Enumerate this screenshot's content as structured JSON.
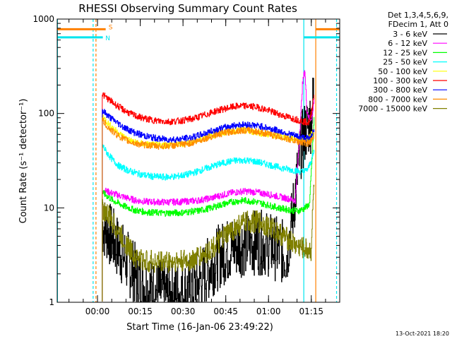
{
  "chart_data": {
    "type": "line",
    "title": "RHESSI Observing Summary Count Rates",
    "xlabel": "Start Time (16-Jan-06 23:49:22)",
    "ylabel": "Count Rate (s⁻¹ detector⁻¹)",
    "y_scale": "log",
    "ylim": [
      1,
      1000
    ],
    "y_ticks": [
      {
        "value": 1,
        "label": "1"
      },
      {
        "value": 10,
        "label": "10"
      },
      {
        "value": 100,
        "label": "100"
      },
      {
        "value": 1000,
        "label": "1000"
      }
    ],
    "x_unit": "minutes after 23:49:22 (16-Jan-06)",
    "xlim": [
      -3.5,
      95.6
    ],
    "x_ticks": [
      {
        "value": 10.63,
        "label": "00:00"
      },
      {
        "value": 25.63,
        "label": "00:15"
      },
      {
        "value": 40.63,
        "label": "00:30"
      },
      {
        "value": 55.63,
        "label": "00:45"
      },
      {
        "value": 70.63,
        "label": "01:00"
      },
      {
        "value": 85.63,
        "label": "01:15"
      }
    ],
    "legend": {
      "placement": "right",
      "header": [
        "Det 1,3,4,5,6,9,",
        "FDecim 1, Att 0"
      ]
    },
    "flags": [
      {
        "label": "S",
        "color": "#ff8000",
        "start": -3.5,
        "end": 13.5,
        "level": 780
      },
      {
        "label": "N",
        "color": "#00e5ee",
        "start": -3.5,
        "end": 12.5,
        "level": 640
      }
    ],
    "orange_flag_right": {
      "start": 87.2,
      "end": 95.6,
      "level": 780
    },
    "cyan_flag_right": {
      "start": 83.0,
      "end": 95.6,
      "level": 640
    },
    "markers": [
      {
        "x": -3.4,
        "color": "#00e5ee",
        "style": "solid"
      },
      {
        "x": 9.1,
        "color": "#00e5ee",
        "style": "dashed"
      },
      {
        "x": 10.1,
        "color": "#ff8000",
        "style": "dashed"
      },
      {
        "x": 83.0,
        "color": "#00e5ee",
        "style": "solid"
      },
      {
        "x": 87.2,
        "color": "#ff8000",
        "style": "solid"
      },
      {
        "x": 94.5,
        "color": "#00e5ee",
        "style": "dashed"
      }
    ],
    "series": [
      {
        "name": "3 - 6 keV",
        "color": "#000000",
        "x": [
          12.3,
          14,
          16,
          18,
          20,
          22,
          24,
          26,
          28,
          30,
          34,
          38,
          42,
          46,
          50,
          54,
          58,
          62,
          66,
          70,
          74,
          77,
          79,
          80.5,
          82,
          83.5,
          84.5,
          85.5,
          86.5
        ],
        "y": [
          6.5,
          5.8,
          4.6,
          3.7,
          3.0,
          2.4,
          1.9,
          1.6,
          1.4,
          1.3,
          1.25,
          1.25,
          1.3,
          1.6,
          2.4,
          3.2,
          3.8,
          4.2,
          4.3,
          4.2,
          3.6,
          3.2,
          8,
          20,
          45,
          65,
          75,
          85,
          160
        ]
      },
      {
        "name": "6 - 12 keV",
        "color": "#ff00ff",
        "x": [
          12.3,
          16,
          20,
          24,
          28,
          34,
          40,
          46,
          50,
          54,
          58,
          62,
          66,
          70,
          74,
          78,
          80,
          81.5,
          82.5,
          83.3,
          84,
          85,
          86,
          86.6
        ],
        "y": [
          15.5,
          14.2,
          13.0,
          12.0,
          11.6,
          11.5,
          11.6,
          12.0,
          12.6,
          13.6,
          14.5,
          15.0,
          14.7,
          14.0,
          13.2,
          12.4,
          12.0,
          60,
          200,
          300,
          110,
          85,
          95,
          150
        ]
      },
      {
        "name": "12 - 25 keV",
        "color": "#00ff00",
        "x": [
          12.3,
          16,
          20,
          24,
          28,
          34,
          40,
          46,
          50,
          54,
          58,
          62,
          66,
          70,
          74,
          78,
          81,
          83,
          85,
          86.6
        ],
        "y": [
          14.5,
          12.0,
          10.4,
          9.4,
          9.0,
          8.8,
          8.9,
          9.3,
          9.9,
          10.8,
          11.6,
          12.0,
          11.6,
          10.8,
          10.0,
          9.5,
          9.3,
          9.8,
          11,
          90
        ]
      },
      {
        "name": "25 - 50 keV",
        "color": "#00ffff",
        "x": [
          12.3,
          14,
          16,
          18,
          20,
          22,
          24,
          26,
          30,
          34,
          38,
          42,
          46,
          50,
          54,
          58,
          62,
          66,
          70,
          74,
          78,
          81,
          83,
          84.5,
          86,
          86.6
        ],
        "y": [
          46,
          38,
          32,
          28,
          26,
          24.5,
          23.5,
          22.5,
          21.5,
          21.2,
          21.5,
          22.5,
          24.5,
          27,
          29.5,
          31.5,
          32,
          31,
          29,
          27,
          25.5,
          24.5,
          24,
          26,
          35,
          40
        ]
      },
      {
        "name": "50 - 100 keV",
        "color": "#ffff00",
        "x": [
          12.3,
          14,
          16,
          18,
          20,
          22,
          24,
          28,
          32,
          36,
          40,
          44,
          48,
          52,
          56,
          60,
          64,
          68,
          72,
          76,
          80,
          83,
          85,
          86.6
        ],
        "y": [
          95,
          80,
          70,
          62,
          56,
          52,
          49,
          47,
          46,
          46.5,
          47.5,
          50,
          55,
          60,
          64,
          66,
          65,
          62,
          59,
          56,
          54,
          53,
          55,
          70
        ]
      },
      {
        "name": "100 - 300 keV",
        "color": "#ff0000",
        "x": [
          12.3,
          14,
          16,
          18,
          20,
          22,
          24,
          28,
          32,
          36,
          40,
          44,
          48,
          52,
          56,
          60,
          64,
          68,
          72,
          76,
          80,
          83,
          85,
          86.6
        ],
        "y": [
          160,
          145,
          130,
          118,
          108,
          100,
          94,
          87,
          83,
          82,
          84,
          88,
          96,
          106,
          114,
          120,
          120,
          114,
          104,
          94,
          87,
          82,
          80,
          160
        ]
      },
      {
        "name": "300 - 800 keV",
        "color": "#0000ff",
        "x": [
          12.3,
          14,
          16,
          18,
          20,
          22,
          24,
          28,
          32,
          36,
          40,
          44,
          48,
          52,
          56,
          60,
          64,
          68,
          72,
          76,
          80,
          83,
          85,
          86.6
        ],
        "y": [
          108,
          96,
          86,
          78,
          71,
          66,
          62,
          57,
          54,
          53,
          53.5,
          56,
          61,
          67,
          72,
          76,
          76,
          73,
          68,
          63,
          58,
          55,
          54,
          70
        ]
      },
      {
        "name": "800 - 7000 keV",
        "color": "#ff8c00",
        "x": [
          12.3,
          14,
          16,
          18,
          20,
          22,
          24,
          28,
          32,
          36,
          40,
          44,
          48,
          52,
          56,
          60,
          64,
          68,
          72,
          76,
          80,
          83,
          85,
          86.6
        ],
        "y": [
          85,
          73,
          64,
          58,
          53,
          50,
          48,
          46,
          45,
          45.5,
          46.5,
          49,
          54,
          59,
          63,
          66,
          66,
          63,
          59,
          55,
          51,
          49,
          48,
          60
        ]
      },
      {
        "name": "7000 - 15000 keV",
        "color": "#808000",
        "x": [
          12.3,
          14,
          16,
          18,
          20,
          22,
          24,
          26,
          28,
          32,
          36,
          40,
          44,
          48,
          52,
          56,
          60,
          64,
          68,
          72,
          76,
          78,
          80,
          82,
          84,
          85.5,
          86.6
        ],
        "y": [
          10,
          8.5,
          7.0,
          5.5,
          4.4,
          3.6,
          3.0,
          2.8,
          2.7,
          2.7,
          2.7,
          2.7,
          2.8,
          3.2,
          4.0,
          5.2,
          6.5,
          7.2,
          7.0,
          6.0,
          5.0,
          4.5,
          4.0,
          3.8,
          3.6,
          3.5,
          20
        ]
      }
    ]
  },
  "footer": {
    "timestamp": "13-Oct-2021 18:20"
  }
}
